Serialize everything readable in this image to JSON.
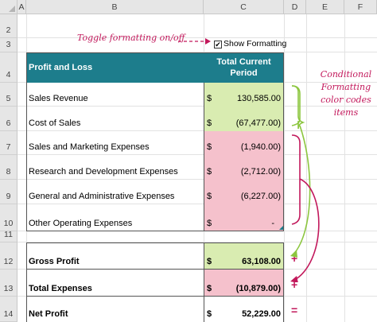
{
  "columns": [
    "A",
    "B",
    "C",
    "D",
    "E",
    "F"
  ],
  "rows": [
    "2",
    "3",
    "4",
    "5",
    "6",
    "7",
    "8",
    "9",
    "10",
    "11",
    "12",
    "13",
    "14"
  ],
  "annotations": {
    "toggle": "Toggle formatting on/off",
    "conditional": [
      "Conditional",
      "Formatting",
      "color codes",
      "items"
    ]
  },
  "checkbox": {
    "label": "Show Formatting",
    "checked": true,
    "mark": "✔"
  },
  "table": {
    "header_label": "Profit and Loss",
    "header_value": [
      "Total Current",
      "Period"
    ],
    "currency": "$",
    "items": [
      {
        "label": "Sales Revenue",
        "value": "130,585.00",
        "color": "#d9ecb1"
      },
      {
        "label": "Cost of Sales",
        "value": "(67,477.00)",
        "color": "#d9ecb1"
      },
      {
        "label": "Sales and Marketing Expenses",
        "value": "(1,940.00)",
        "color": "#f5c1cc"
      },
      {
        "label": "Research and Development Expenses",
        "value": "(2,712.00)",
        "color": "#f5c1cc"
      },
      {
        "label": "General and Administrative Expenses",
        "value": "(6,227.00)",
        "color": "#f5c1cc"
      },
      {
        "label": "Other Operating Expenses",
        "value": "-",
        "color": "#f5c1cc"
      }
    ],
    "totals": [
      {
        "label": "Gross Profit",
        "value": "63,108.00",
        "color": "#d9ecb1",
        "operator": "+"
      },
      {
        "label": "Total Expenses",
        "value": "(10,879.00)",
        "color": "#f5c1cc",
        "operator": "+"
      },
      {
        "label": "Net Profit",
        "value": "52,229.00",
        "color": "#ffffff",
        "operator": "="
      }
    ]
  },
  "colors": {
    "header_fill": "#1d7d8c",
    "accent": "#c2185b",
    "green_arrow": "#8cc63f"
  }
}
